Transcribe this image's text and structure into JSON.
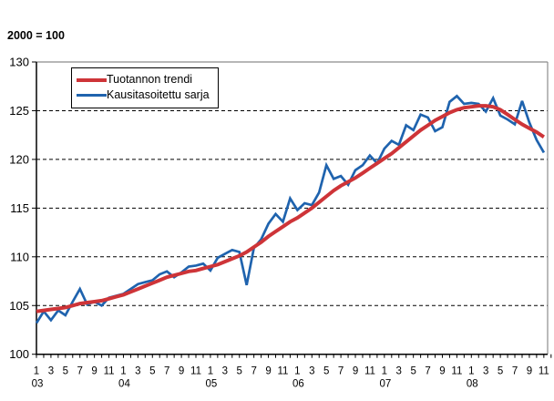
{
  "header": {
    "unit_label": "2000 = 100"
  },
  "legend": {
    "position": "top-left-inside",
    "items": [
      {
        "label": "Tuotannon trendi",
        "color": "#ce3438"
      },
      {
        "label": "Kausitasoitettu sarja",
        "color": "#1f63ae"
      }
    ]
  },
  "colors": {
    "background": "#ffffff",
    "axis": "#000000",
    "grid": "#000000",
    "plot_border": "#8c8c8c",
    "text": "#000000",
    "trend_red": "#ce3438",
    "seasonal_blue": "#1f63ae"
  },
  "chart_data": {
    "type": "line",
    "title": "",
    "unit_label": "2000 = 100",
    "x_start": "2003-01",
    "x_end": "2008-11",
    "x_frequency": "monthly",
    "month_tick_labels": [
      "1",
      "3",
      "5",
      "7",
      "9",
      "11"
    ],
    "year_labels": [
      "03",
      "04",
      "05",
      "06",
      "07",
      "08"
    ],
    "ylim": [
      100,
      130
    ],
    "yticks": [
      100,
      105,
      110,
      115,
      120,
      125,
      130
    ],
    "ytick_labels": [
      "100",
      "105",
      "110",
      "115",
      "120",
      "125",
      "130"
    ],
    "grid": "horizontal-dashed",
    "legend_position": "top-left-inside",
    "series": [
      {
        "name": "Tuotannon trendi",
        "color": "#ce3438",
        "line_width": 4,
        "values": [
          104.4,
          104.5,
          104.6,
          104.7,
          104.8,
          105.0,
          105.2,
          105.3,
          105.4,
          105.5,
          105.7,
          105.9,
          106.1,
          106.4,
          106.7,
          107.0,
          107.3,
          107.6,
          107.9,
          108.1,
          108.3,
          108.5,
          108.6,
          108.8,
          109.0,
          109.2,
          109.5,
          109.8,
          110.1,
          110.5,
          111.0,
          111.5,
          112.1,
          112.6,
          113.1,
          113.6,
          114.0,
          114.5,
          115.0,
          115.6,
          116.2,
          116.8,
          117.3,
          117.7,
          118.1,
          118.6,
          119.1,
          119.6,
          120.1,
          120.6,
          121.2,
          121.8,
          122.4,
          123.0,
          123.5,
          124.0,
          124.4,
          124.8,
          125.1,
          125.3,
          125.4,
          125.5,
          125.5,
          125.4,
          125.1,
          124.6,
          124.1,
          123.6,
          123.2,
          122.8,
          122.3
        ]
      },
      {
        "name": "Kausitasoitettu sarja",
        "color": "#1f63ae",
        "line_width": 2.7,
        "values": [
          103.2,
          104.4,
          103.5,
          104.5,
          104.0,
          105.4,
          106.7,
          105.1,
          105.4,
          105.0,
          105.8,
          106.0,
          106.2,
          106.7,
          107.2,
          107.4,
          107.6,
          108.2,
          108.5,
          107.9,
          108.4,
          109.0,
          109.1,
          109.3,
          108.6,
          109.9,
          110.3,
          110.7,
          110.5,
          107.1,
          110.9,
          111.8,
          113.4,
          114.4,
          113.6,
          116.0,
          114.8,
          115.5,
          115.3,
          116.6,
          119.4,
          118.0,
          118.3,
          117.4,
          118.9,
          119.4,
          120.4,
          119.6,
          121.1,
          121.9,
          121.5,
          123.5,
          123.0,
          124.6,
          124.3,
          122.9,
          123.3,
          125.9,
          126.5,
          125.7,
          125.8,
          125.7,
          124.9,
          126.3,
          124.5,
          124.1,
          123.6,
          126.0,
          123.8,
          122.0,
          120.7
        ]
      }
    ]
  }
}
